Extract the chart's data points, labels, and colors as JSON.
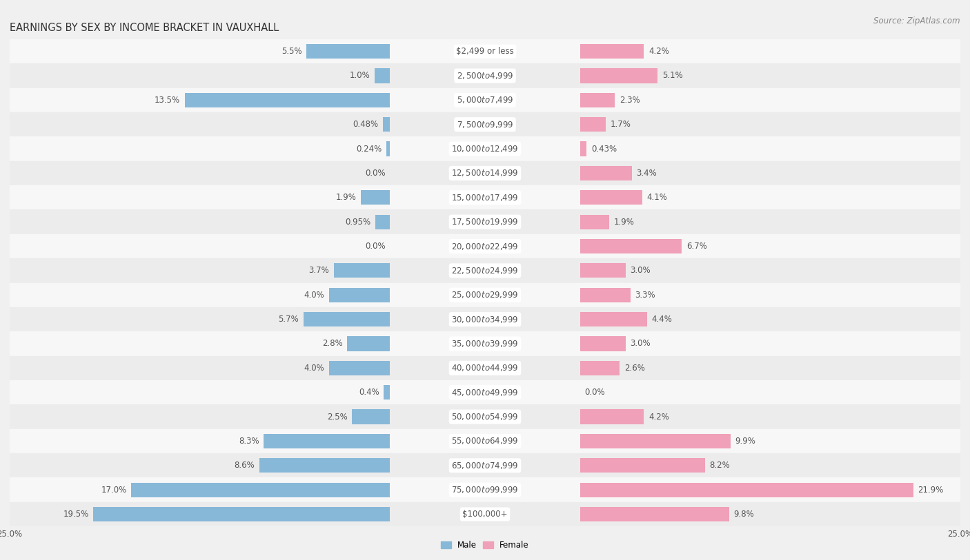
{
  "title": "EARNINGS BY SEX BY INCOME BRACKET IN VAUXHALL",
  "source": "Source: ZipAtlas.com",
  "categories": [
    "$2,499 or less",
    "$2,500 to $4,999",
    "$5,000 to $7,499",
    "$7,500 to $9,999",
    "$10,000 to $12,499",
    "$12,500 to $14,999",
    "$15,000 to $17,499",
    "$17,500 to $19,999",
    "$20,000 to $22,499",
    "$22,500 to $24,999",
    "$25,000 to $29,999",
    "$30,000 to $34,999",
    "$35,000 to $39,999",
    "$40,000 to $44,999",
    "$45,000 to $49,999",
    "$50,000 to $54,999",
    "$55,000 to $64,999",
    "$65,000 to $74,999",
    "$75,000 to $99,999",
    "$100,000+"
  ],
  "male_values": [
    5.5,
    1.0,
    13.5,
    0.48,
    0.24,
    0.0,
    1.9,
    0.95,
    0.0,
    3.7,
    4.0,
    5.7,
    2.8,
    4.0,
    0.4,
    2.5,
    8.3,
    8.6,
    17.0,
    19.5
  ],
  "female_values": [
    4.2,
    5.1,
    2.3,
    1.7,
    0.43,
    3.4,
    4.1,
    1.9,
    6.7,
    3.0,
    3.3,
    4.4,
    3.0,
    2.6,
    0.0,
    4.2,
    9.9,
    8.2,
    21.9,
    9.8
  ],
  "male_color": "#88b8d8",
  "female_color": "#f0a0b8",
  "row_colors": [
    "#f7f7f7",
    "#ececec"
  ],
  "bg_color": "#f0f0f0",
  "xlim": 25.0,
  "bar_height": 0.6,
  "title_fontsize": 10.5,
  "label_fontsize": 8.5,
  "cat_fontsize": 8.5,
  "tick_fontsize": 8.5,
  "source_fontsize": 8.5
}
